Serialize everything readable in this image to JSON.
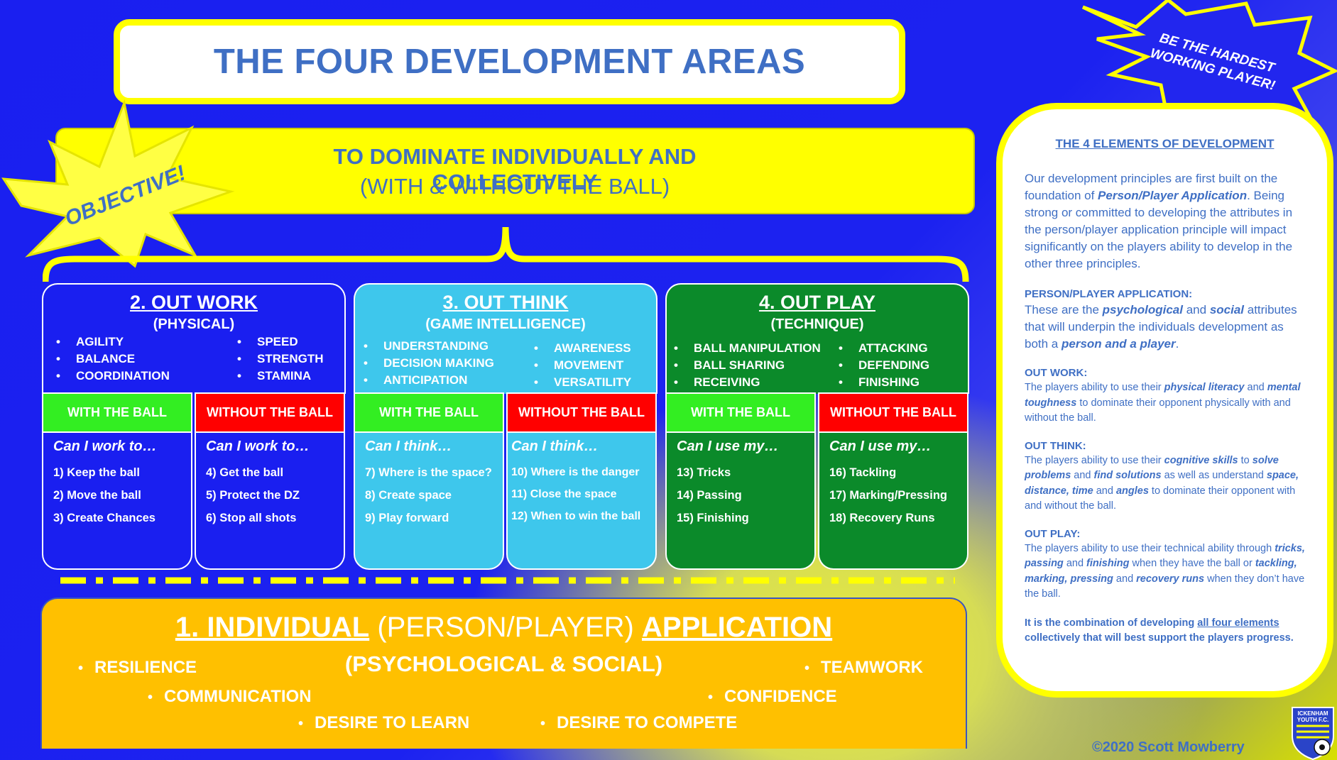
{
  "title": "THE FOUR DEVELOPMENT AREAS",
  "objective": {
    "badge": "OBJECTIVE!",
    "line1": "TO DOMINATE INDIVIDUALLY AND COLLECTIVELY",
    "line2": "(WITH & WITHOUT THE BALL)"
  },
  "badge2": {
    "line1": "BE THE HARDEST",
    "line2": "WORKING PLAYER!"
  },
  "colors": {
    "blue": "#1a1ff0",
    "light_blue": "#3ec7ec",
    "green": "#0b8a2a",
    "bright_green": "#33ee22",
    "red": "#ff0000",
    "yellow": "#ffff00",
    "orange": "#ffc000",
    "text_blue": "#3f6fc4"
  },
  "columns": [
    {
      "title": "2. OUT WORK",
      "subtitle": "(PHYSICAL)",
      "left_bullets": [
        "AGILITY",
        "BALANCE",
        "COORDINATION"
      ],
      "right_bullets": [
        "SPEED",
        "STRENGTH",
        "STAMINA"
      ],
      "with": {
        "header": "WITH THE BALL",
        "question": "Can I work to…",
        "items": [
          "1) Keep the ball",
          "2) Move the ball",
          "3) Create Chances"
        ]
      },
      "without": {
        "header": "WITHOUT THE BALL",
        "question": "Can I work to…",
        "items": [
          "4) Get the ball",
          "5) Protect the DZ",
          "6) Stop all shots"
        ]
      }
    },
    {
      "title": "3. OUT THINK",
      "subtitle": "(GAME INTELLIGENCE)",
      "left_bullets": [
        "UNDERSTANDING",
        "DECISION MAKING",
        "ANTICIPATION"
      ],
      "right_bullets": [
        "AWARENESS",
        "MOVEMENT",
        "VERSATILITY"
      ],
      "with": {
        "header": "WITH THE BALL",
        "question": "Can I think…",
        "items": [
          "7) Where is the space?",
          "8) Create space",
          "9) Play forward"
        ]
      },
      "without": {
        "header": "WITHOUT THE BALL",
        "question": "Can I think…",
        "items": [
          "10) Where is the danger",
          "11) Close the space",
          "12) When to win the ball"
        ]
      }
    },
    {
      "title": "4. OUT PLAY",
      "subtitle": "(TECHNIQUE)",
      "left_bullets": [
        "BALL MANIPULATION",
        "BALL SHARING",
        "RECEIVING"
      ],
      "right_bullets": [
        "ATTACKING",
        "DEFENDING",
        "FINISHING"
      ],
      "with": {
        "header": "WITH THE BALL",
        "question": "Can I use my…",
        "items": [
          "13) Tricks",
          "14) Passing",
          "15) Finishing"
        ]
      },
      "without": {
        "header": "WITHOUT THE BALL",
        "question": "Can I use my…",
        "items": [
          "16) Tackling",
          "17) Marking/Pressing",
          "18) Recovery Runs"
        ]
      }
    }
  ],
  "bottom": {
    "title_bold1": "1. INDIVIDUAL",
    "title_plain": " (PERSON/PLAYER) ",
    "title_bold2": "APPLICATION",
    "subtitle": "(PSYCHOLOGICAL & SOCIAL)",
    "items": {
      "resilience": "RESILIENCE",
      "teamwork": "TEAMWORK",
      "communication": "COMMUNICATION",
      "confidence": "CONFIDENCE",
      "desire_learn": "DESIRE TO LEARN",
      "desire_compete": "DESIRE TO COMPETE"
    }
  },
  "sidebar": {
    "heading": "THE 4 ELEMENTS OF DEVELOPMENT",
    "intro_a": "Our development principles are first built on the foundation of ",
    "intro_b": "Person/Player Application",
    "intro_c": ". Being strong or committed to developing the attributes in the person/player application principle will impact significantly on the players ability to develop in the other three principles.",
    "ppa_head": "PERSON/PLAYER APPLICATION:",
    "ppa_a": "These are the ",
    "ppa_b": "psychological",
    "ppa_c": " and ",
    "ppa_d": "social",
    "ppa_e": " attributes that will underpin the individuals development as both a ",
    "ppa_f": "person and a player",
    "ppa_g": ".",
    "work_head": "OUT WORK:",
    "work_a": "The players ability to use their ",
    "work_b": "physical literacy",
    "work_c": " and ",
    "work_d": "mental toughness",
    "work_e": " to dominate their opponent physically with and without the ball.",
    "think_head": "OUT THINK:",
    "think_a": "The players ability to use their ",
    "think_b": "cognitive skills",
    "think_c": " to ",
    "think_d": "solve problems",
    "think_e": " and ",
    "think_f": "find solutions",
    "think_g": " as well as understand ",
    "think_h": "space, distance, time",
    "think_i": " and ",
    "think_j": "angles",
    "think_k": " to dominate their opponent with and without the ball.",
    "play_head": "OUT PLAY:",
    "play_a": "The players ability to use their technical ability through ",
    "play_b": "tricks, passing",
    "play_c": " and ",
    "play_d": "finishing",
    "play_e": " when they have the ball or ",
    "play_f": "tackling, marking, pressing",
    "play_g": " and ",
    "play_h": "recovery runs",
    "play_i": " when they don’t have the ball.",
    "final_a": "It is the combination of developing ",
    "final_b": "all four elements",
    "final_c": " collectively that will best support the players progress."
  },
  "copyright": "©2020 Scott Mowberry",
  "crest": {
    "line1": "ICKENHAM",
    "line2": "YOUTH F.C."
  }
}
